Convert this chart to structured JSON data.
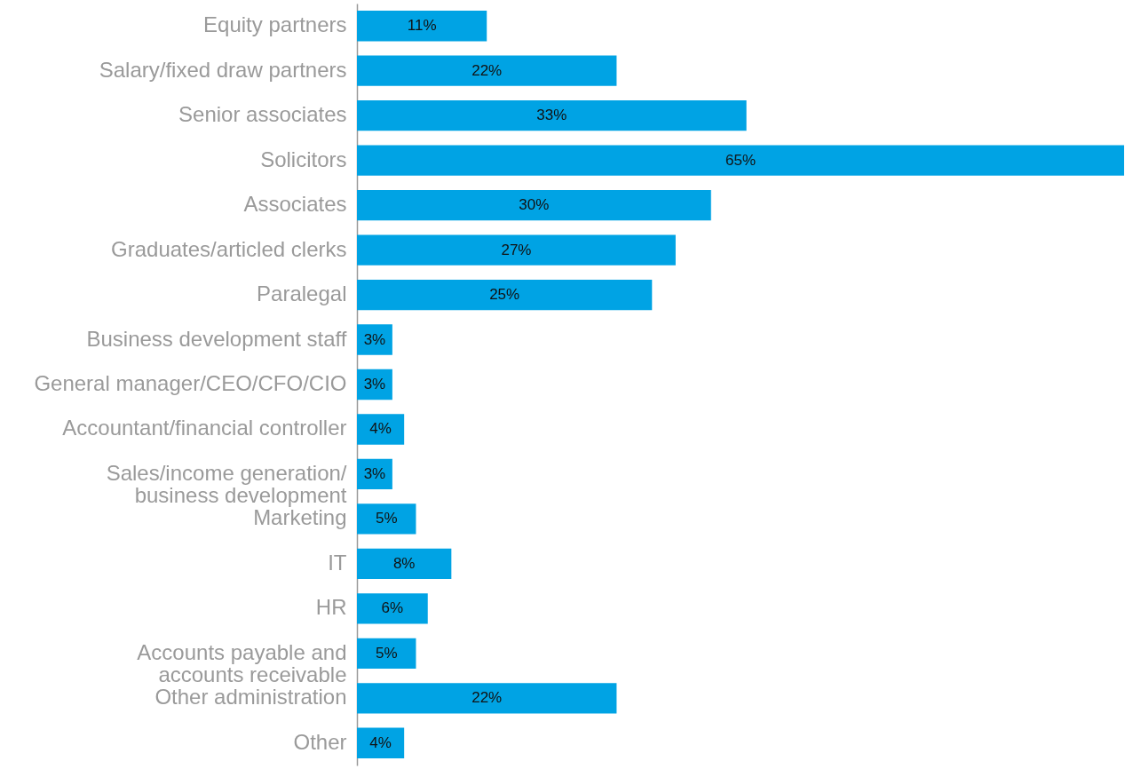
{
  "chart_data": {
    "type": "bar",
    "orientation": "horizontal",
    "color": "#00a3e4",
    "categories": [
      "Equity partners",
      "Salary/fixed draw partners",
      "Senior associates",
      "Solicitors",
      "Associates",
      "Graduates/articled clerks",
      "Paralegal",
      "Business development staff",
      "General manager/CEO/CFO/CIO",
      "Accountant/financial controller",
      "Sales/income generation/\nbusiness development",
      "Marketing",
      "IT",
      "HR",
      "Accounts payable and\naccounts receivable",
      "Other administration",
      "Other"
    ],
    "values": [
      11,
      22,
      33,
      65,
      30,
      27,
      25,
      3,
      3,
      4,
      3,
      5,
      8,
      6,
      5,
      22,
      4
    ],
    "value_labels": [
      "11%",
      "22%",
      "33%",
      "65%",
      "30%",
      "27%",
      "25%",
      "3%",
      "3%",
      "4%",
      "3%",
      "5%",
      "8%",
      "6%",
      "5%",
      "22%",
      "4%"
    ],
    "xlim": [
      0,
      65
    ],
    "tick_labels": "y"
  }
}
